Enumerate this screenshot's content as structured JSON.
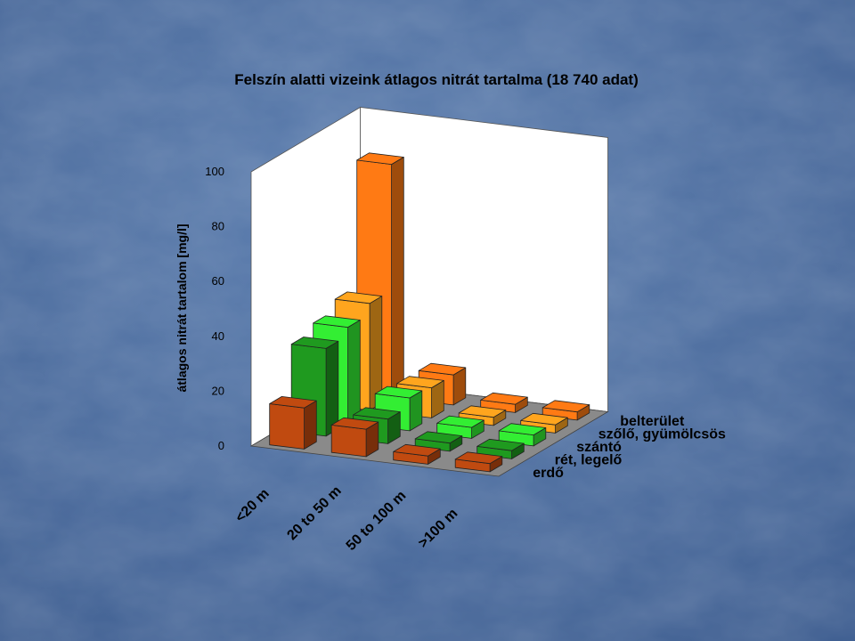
{
  "chart_data": {
    "type": "bar",
    "variant": "3d-grouped-columns",
    "title": "Felszín alatti vizeink átlagos nitrát tartalma (18 740 adat)",
    "ylabel": "átlagos nitrát tartalom [mg/l]",
    "xlabel": "",
    "ylim": [
      0,
      100
    ],
    "yticks": [
      "0",
      "20",
      "40",
      "60",
      "80",
      "100"
    ],
    "categories": [
      "<20 m",
      "20 to 50 m",
      "50 to 100 m",
      ">100 m"
    ],
    "series": [
      {
        "name": "erdő",
        "color": "#c04a10",
        "values": [
          15,
          10,
          3,
          3
        ]
      },
      {
        "name": "rét, legelő",
        "color": "#1f9a1f",
        "values": [
          32,
          9,
          3,
          3
        ]
      },
      {
        "name": "szántó",
        "color": "#33ee33",
        "values": [
          35,
          12,
          4,
          4
        ]
      },
      {
        "name": "szőlő, gyümölcsös",
        "color": "#ffa51e",
        "values": [
          39,
          11,
          3,
          3
        ]
      },
      {
        "name": "belterület",
        "color": "#ff7a14",
        "values": [
          85,
          11,
          3,
          3
        ]
      }
    ],
    "grid": false,
    "legend": "series labels along the depth axis, right"
  }
}
